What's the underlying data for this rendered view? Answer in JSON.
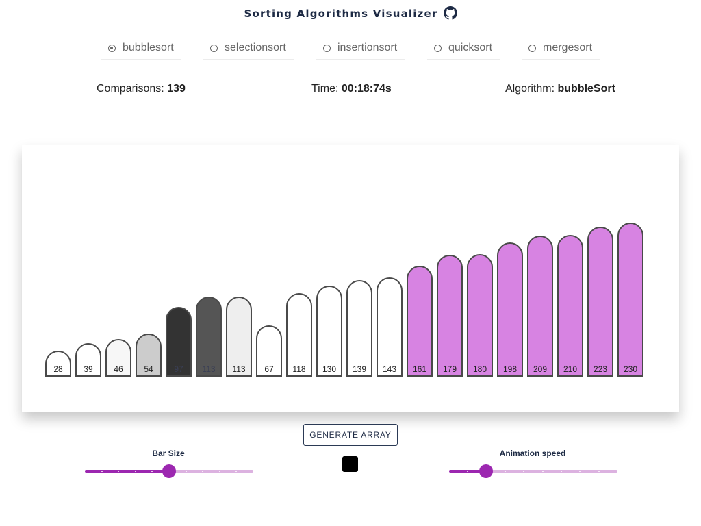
{
  "header": {
    "title": "Sorting Algorithms Visualizer",
    "icon": "github-icon"
  },
  "algorithms": [
    {
      "label": "bubblesort",
      "checked": true
    },
    {
      "label": "selectionsort",
      "checked": false
    },
    {
      "label": "insertionsort",
      "checked": false
    },
    {
      "label": "quicksort",
      "checked": false
    },
    {
      "label": "mergesort",
      "checked": false
    }
  ],
  "stats": {
    "comparisons_label": "Comparisons: ",
    "comparisons_value": "139",
    "time_label": "Time: ",
    "time_value": "00:18:74s",
    "algorithm_label": "Algorithm: ",
    "algorithm_value": "bubbleSort"
  },
  "bars": [
    {
      "value": 28,
      "state": "default"
    },
    {
      "value": 39,
      "state": "default"
    },
    {
      "value": 46,
      "state": "light"
    },
    {
      "value": 54,
      "state": "lightgray"
    },
    {
      "value": 97,
      "state": "dark"
    },
    {
      "value": 113,
      "state": "darkgray"
    },
    {
      "value": 113,
      "state": "pale"
    },
    {
      "value": 67,
      "state": "default"
    },
    {
      "value": 118,
      "state": "default"
    },
    {
      "value": 130,
      "state": "default"
    },
    {
      "value": 139,
      "state": "default"
    },
    {
      "value": 143,
      "state": "default"
    },
    {
      "value": 161,
      "state": "sorted"
    },
    {
      "value": 179,
      "state": "sorted"
    },
    {
      "value": 180,
      "state": "sorted"
    },
    {
      "value": 198,
      "state": "sorted"
    },
    {
      "value": 209,
      "state": "sorted"
    },
    {
      "value": 210,
      "state": "sorted"
    },
    {
      "value": 223,
      "state": "sorted"
    },
    {
      "value": 230,
      "state": "sorted"
    }
  ],
  "state_colors": {
    "default": "#ffffff",
    "light": "#f7f7f7",
    "lightgray": "#cccccc",
    "dark": "#333333",
    "darkgray": "#555555",
    "pale": "#eeeeee",
    "sorted": "#d783e2"
  },
  "controls": {
    "generate_label": "GENERATE ARRAY",
    "bar_size_label": "Bar Size",
    "bar_size_fraction": 0.5,
    "bar_size_steps": 10,
    "animation_speed_label": "Animation speed",
    "animation_speed_fraction": 0.22,
    "animation_speed_steps": 9
  },
  "colors": {
    "accent": "#9c27b0",
    "accent_light": "#dcb2e0",
    "text_dark": "#1d2a44"
  }
}
